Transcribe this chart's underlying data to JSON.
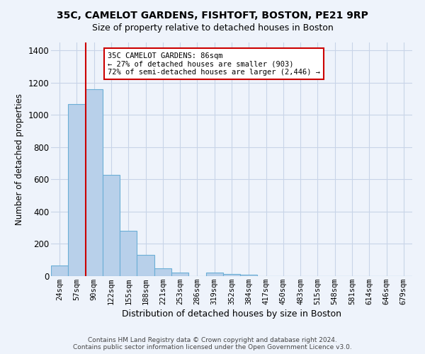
{
  "title_line1": "35C, CAMELOT GARDENS, FISHTOFT, BOSTON, PE21 9RP",
  "title_line2": "Size of property relative to detached houses in Boston",
  "xlabel": "Distribution of detached houses by size in Boston",
  "ylabel": "Number of detached properties",
  "bin_labels": [
    "24sqm",
    "57sqm",
    "90sqm",
    "122sqm",
    "155sqm",
    "188sqm",
    "221sqm",
    "253sqm",
    "286sqm",
    "319sqm",
    "352sqm",
    "384sqm",
    "417sqm",
    "450sqm",
    "483sqm",
    "515sqm",
    "548sqm",
    "581sqm",
    "614sqm",
    "646sqm",
    "679sqm"
  ],
  "bar_heights": [
    65,
    1068,
    1160,
    630,
    280,
    130,
    47,
    20,
    0,
    20,
    15,
    10,
    0,
    0,
    0,
    0,
    0,
    0,
    0,
    0,
    0
  ],
  "bar_color": "#b8d0ea",
  "bar_edge_color": "#6baed6",
  "property_line_color": "#cc0000",
  "annotation_text": "35C CAMELOT GARDENS: 86sqm\n← 27% of detached houses are smaller (903)\n72% of semi-detached houses are larger (2,446) →",
  "annotation_box_color": "#ffffff",
  "annotation_box_edge_color": "#cc0000",
  "ylim": [
    0,
    1450
  ],
  "yticks": [
    0,
    200,
    400,
    600,
    800,
    1000,
    1200,
    1400
  ],
  "footer_line1": "Contains HM Land Registry data © Crown copyright and database right 2024.",
  "footer_line2": "Contains public sector information licensed under the Open Government Licence v3.0.",
  "background_color": "#eef3fb",
  "plot_bg_color": "#eef3fb",
  "grid_color": "#c8d4e8",
  "title_fontsize": 10,
  "subtitle_fontsize": 9
}
